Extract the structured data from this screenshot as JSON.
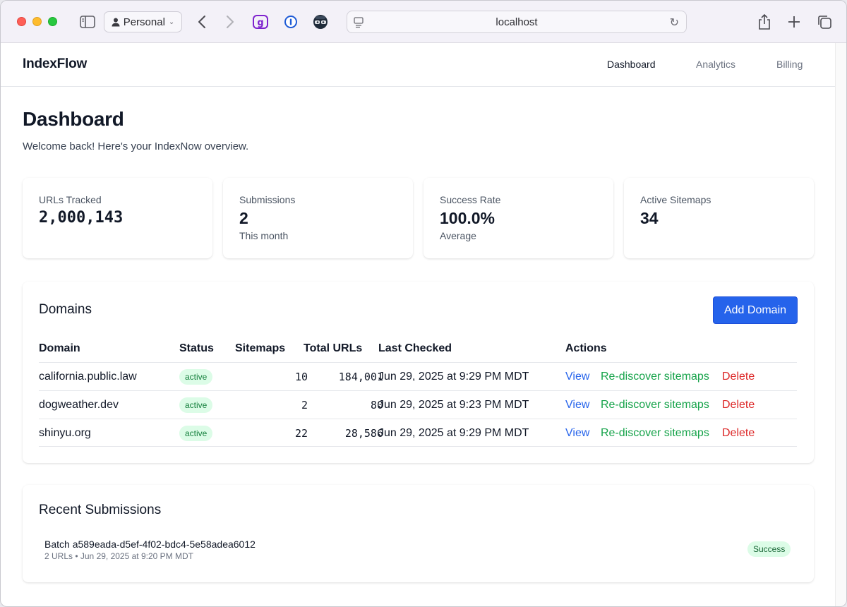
{
  "browser": {
    "profile_label": "Personal",
    "address": "localhost"
  },
  "app": {
    "brand": "IndexFlow",
    "nav": [
      {
        "label": "Dashboard",
        "active": true
      },
      {
        "label": "Analytics",
        "active": false
      },
      {
        "label": "Billing",
        "active": false
      }
    ]
  },
  "page": {
    "title": "Dashboard",
    "subtitle": "Welcome back! Here's your IndexNow overview."
  },
  "stats": [
    {
      "label": "URLs Tracked",
      "value": "2,000,143",
      "note": ""
    },
    {
      "label": "Submissions",
      "value": "2",
      "note": "This month"
    },
    {
      "label": "Success Rate",
      "value": "100.0%",
      "note": "Average"
    },
    {
      "label": "Active Sitemaps",
      "value": "34",
      "note": ""
    }
  ],
  "domains": {
    "heading": "Domains",
    "add_label": "Add Domain",
    "columns": [
      "Domain",
      "Status",
      "Sitemaps",
      "Total URLs",
      "Last Checked",
      "Actions"
    ],
    "rows": [
      {
        "domain": "california.public.law",
        "status": "active",
        "sitemaps": "10",
        "total_urls": "184,001",
        "last_checked": "Jun 29, 2025 at 9:29 PM MDT"
      },
      {
        "domain": "dogweather.dev",
        "status": "active",
        "sitemaps": "2",
        "total_urls": "80",
        "last_checked": "Jun 29, 2025 at 9:23 PM MDT"
      },
      {
        "domain": "shinyu.org",
        "status": "active",
        "sitemaps": "22",
        "total_urls": "28,586",
        "last_checked": "Jun 29, 2025 at 9:29 PM MDT"
      }
    ],
    "actions": {
      "view": "View",
      "rediscover": "Re-discover sitemaps",
      "delete": "Delete"
    }
  },
  "submissions": {
    "heading": "Recent Submissions",
    "items": [
      {
        "title": "Batch a589eada-d5ef-4f02-bdc4-5e58adea6012",
        "meta": "2 URLs • Jun 29, 2025 at 9:20 PM MDT",
        "status": "Success"
      }
    ]
  },
  "colors": {
    "primary": "#2563eb",
    "success": "#16a34a",
    "danger": "#dc2626",
    "badge_bg": "#dcfce7"
  }
}
